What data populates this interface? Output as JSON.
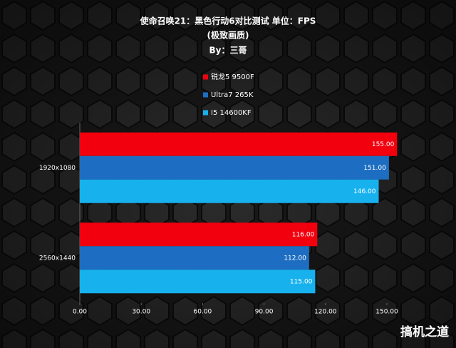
{
  "chart_data": {
    "type": "bar",
    "orientation": "horizontal",
    "title": "使命召唤21：黑色行动6对比测试 单位：FPS",
    "subtitle": "(极致画质)",
    "author": "By：三哥",
    "watermark": "搞机之道",
    "categories": [
      "1920x1080",
      "2560x1440"
    ],
    "series": [
      {
        "name": "锐龙5 9500F",
        "color": "#f2000e",
        "values": [
          155,
          116
        ],
        "value_labels": [
          "155.00",
          "116.00"
        ]
      },
      {
        "name": "Ultra7 265K",
        "color": "#1d6ec2",
        "values": [
          151,
          112
        ],
        "value_labels": [
          "151.00",
          "112.00"
        ]
      },
      {
        "name": "I5 14600KF",
        "color": "#17b2ee",
        "values": [
          146,
          115
        ],
        "value_labels": [
          "146.00",
          "115.00"
        ]
      }
    ],
    "xlim": [
      0,
      150
    ],
    "xticks": [
      {
        "value": 0,
        "label": "0.00"
      },
      {
        "value": 30,
        "label": "30.00"
      },
      {
        "value": 60,
        "label": "60.00"
      },
      {
        "value": 90,
        "label": "90.00"
      },
      {
        "value": 120,
        "label": "120.00"
      },
      {
        "value": 150,
        "label": "150.00"
      }
    ],
    "legend": "top"
  }
}
